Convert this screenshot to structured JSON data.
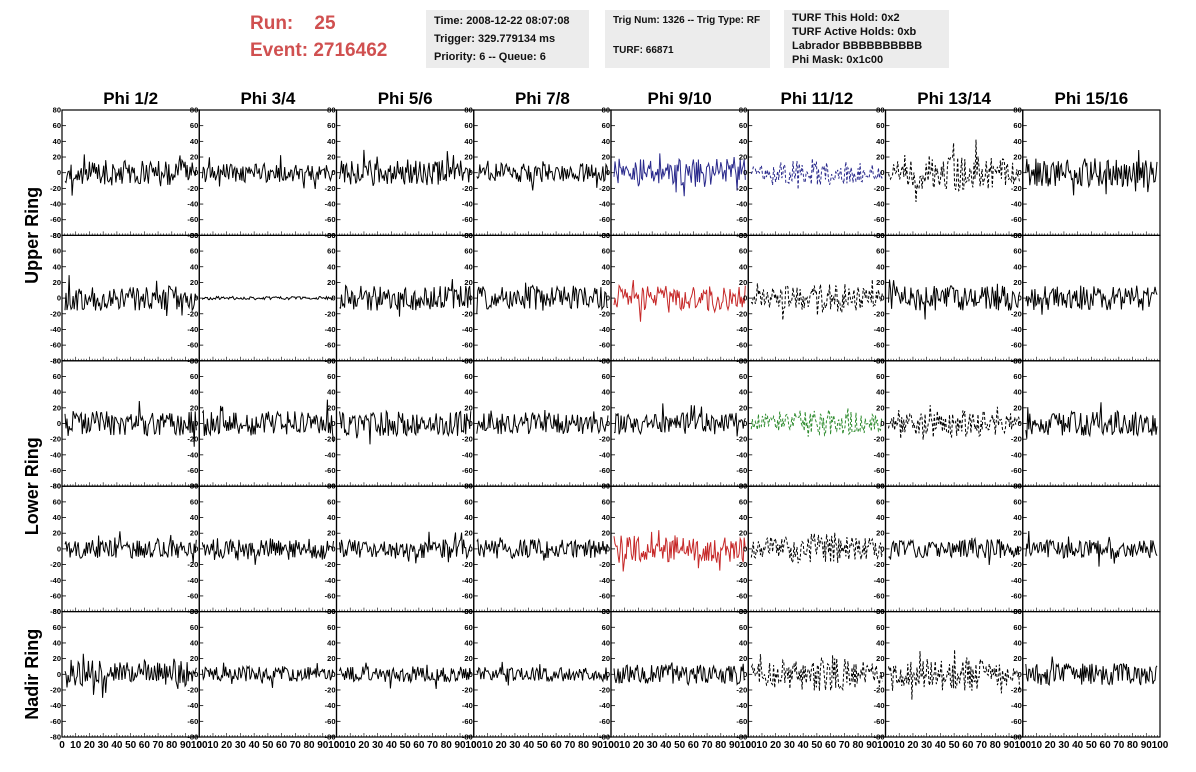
{
  "header": {
    "run_label": "Run:",
    "run_value": "25",
    "event_label": "Event:",
    "event_value": "2716462"
  },
  "info_boxes": {
    "timing": {
      "time": "Time: 2008-12-22 08:07:08",
      "trigger": "Trigger: 329.779134 ms",
      "priority": "Priority: 6 -- Queue: 6"
    },
    "trig": {
      "trig_num": "Trig Num: 1326 -- Trig Type: RF",
      "turf": "TURF: 66871"
    },
    "turf": {
      "this_hold": "TURF This Hold: 0x2",
      "active_holds": "TURF Active Holds: 0xb",
      "labrador": "Labrador BBBBBBBBBB",
      "phi_mask": "Phi Mask: 0x1c00"
    }
  },
  "chart_data": {
    "type": "line",
    "columns": [
      "Phi 1/2",
      "Phi 3/4",
      "Phi 5/6",
      "Phi 7/8",
      "Phi 9/10",
      "Phi 11/12",
      "Phi 13/14",
      "Phi 15/16"
    ],
    "ring_labels": [
      {
        "label": "Upper Ring",
        "rows": [
          0,
          1
        ]
      },
      {
        "label": "Lower Ring",
        "rows": [
          2,
          3
        ]
      },
      {
        "label": "Nadir Ring",
        "rows": [
          4
        ]
      }
    ],
    "xlim": [
      0,
      100
    ],
    "ylim": [
      -80,
      80
    ],
    "y_ticks": [
      "80",
      "60",
      "40",
      "20",
      "0",
      "-20",
      "-40",
      "-60",
      "-80"
    ],
    "x_ticks": [
      "0",
      "10",
      "20",
      "30",
      "40",
      "50",
      "60",
      "70",
      "80",
      "90",
      "100"
    ],
    "colors": {
      "black": "#000000",
      "blue": "#2a2a8c",
      "red": "#c62828",
      "green": "#2e8b2e"
    },
    "panels": [
      {
        "row": 0,
        "col": 0,
        "amp": 16,
        "color": "black",
        "dashed": false
      },
      {
        "row": 0,
        "col": 1,
        "amp": 12,
        "color": "black",
        "dashed": false
      },
      {
        "row": 0,
        "col": 2,
        "amp": 16,
        "color": "black",
        "dashed": false
      },
      {
        "row": 0,
        "col": 3,
        "amp": 12,
        "color": "black",
        "dashed": false
      },
      {
        "row": 0,
        "col": 4,
        "amp": 18,
        "color": "blue",
        "dashed": false
      },
      {
        "row": 0,
        "col": 5,
        "amp": 16,
        "color": "blue",
        "dashed": true
      },
      {
        "row": 0,
        "col": 6,
        "amp": 24,
        "color": "black",
        "dashed": true
      },
      {
        "row": 0,
        "col": 7,
        "amp": 18,
        "color": "black",
        "dashed": false
      },
      {
        "row": 1,
        "col": 0,
        "amp": 16,
        "color": "black",
        "dashed": false
      },
      {
        "row": 1,
        "col": 1,
        "amp": 2,
        "color": "black",
        "dashed": false
      },
      {
        "row": 1,
        "col": 2,
        "amp": 16,
        "color": "black",
        "dashed": false
      },
      {
        "row": 1,
        "col": 3,
        "amp": 16,
        "color": "black",
        "dashed": false
      },
      {
        "row": 1,
        "col": 4,
        "amp": 16,
        "color": "red",
        "dashed": false
      },
      {
        "row": 1,
        "col": 5,
        "amp": 20,
        "color": "black",
        "dashed": true
      },
      {
        "row": 1,
        "col": 6,
        "amp": 16,
        "color": "black",
        "dashed": false
      },
      {
        "row": 1,
        "col": 7,
        "amp": 16,
        "color": "black",
        "dashed": false
      },
      {
        "row": 2,
        "col": 0,
        "amp": 16,
        "color": "black",
        "dashed": false
      },
      {
        "row": 2,
        "col": 1,
        "amp": 16,
        "color": "black",
        "dashed": false
      },
      {
        "row": 2,
        "col": 2,
        "amp": 16,
        "color": "black",
        "dashed": false
      },
      {
        "row": 2,
        "col": 3,
        "amp": 14,
        "color": "black",
        "dashed": false
      },
      {
        "row": 2,
        "col": 4,
        "amp": 14,
        "color": "black",
        "dashed": false
      },
      {
        "row": 2,
        "col": 5,
        "amp": 18,
        "color": "green",
        "dashed": true
      },
      {
        "row": 2,
        "col": 6,
        "amp": 18,
        "color": "black",
        "dashed": true
      },
      {
        "row": 2,
        "col": 7,
        "amp": 16,
        "color": "black",
        "dashed": false
      },
      {
        "row": 3,
        "col": 0,
        "amp": 12,
        "color": "black",
        "dashed": false
      },
      {
        "row": 3,
        "col": 1,
        "amp": 14,
        "color": "black",
        "dashed": false
      },
      {
        "row": 3,
        "col": 2,
        "amp": 12,
        "color": "black",
        "dashed": false
      },
      {
        "row": 3,
        "col": 3,
        "amp": 12,
        "color": "black",
        "dashed": false
      },
      {
        "row": 3,
        "col": 4,
        "amp": 18,
        "color": "red",
        "dashed": false
      },
      {
        "row": 3,
        "col": 5,
        "amp": 20,
        "color": "black",
        "dashed": true
      },
      {
        "row": 3,
        "col": 6,
        "amp": 12,
        "color": "black",
        "dashed": false
      },
      {
        "row": 3,
        "col": 7,
        "amp": 12,
        "color": "black",
        "dashed": false
      },
      {
        "row": 4,
        "col": 0,
        "amp": 18,
        "color": "black",
        "dashed": false
      },
      {
        "row": 4,
        "col": 1,
        "amp": 10,
        "color": "black",
        "dashed": false
      },
      {
        "row": 4,
        "col": 2,
        "amp": 10,
        "color": "black",
        "dashed": false
      },
      {
        "row": 4,
        "col": 3,
        "amp": 9,
        "color": "black",
        "dashed": false
      },
      {
        "row": 4,
        "col": 4,
        "amp": 12,
        "color": "black",
        "dashed": false
      },
      {
        "row": 4,
        "col": 5,
        "amp": 22,
        "color": "black",
        "dashed": true
      },
      {
        "row": 4,
        "col": 6,
        "amp": 22,
        "color": "black",
        "dashed": true
      },
      {
        "row": 4,
        "col": 7,
        "amp": 14,
        "color": "black",
        "dashed": false
      }
    ]
  }
}
